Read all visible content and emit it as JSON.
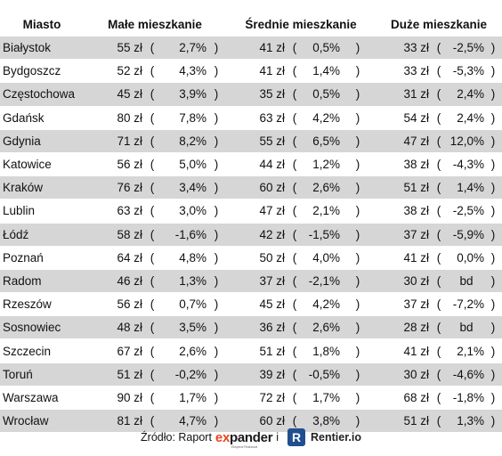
{
  "headers": [
    "Miasto",
    "Małe mieszkanie",
    "Średnie mieszkanie",
    "Duże mieszkanie"
  ],
  "rows": [
    {
      "city": "Białystok",
      "small": {
        "price": "55 zł",
        "change": "2,7%"
      },
      "medium": {
        "price": "41 zł",
        "change": "0,5%"
      },
      "large": {
        "price": "33 zł",
        "change": "-2,5%"
      }
    },
    {
      "city": "Bydgoszcz",
      "small": {
        "price": "52 zł",
        "change": "4,3%"
      },
      "medium": {
        "price": "41 zł",
        "change": "1,4%"
      },
      "large": {
        "price": "33 zł",
        "change": "-5,3%"
      }
    },
    {
      "city": "Częstochowa",
      "small": {
        "price": "45 zł",
        "change": "3,9%"
      },
      "medium": {
        "price": "35 zł",
        "change": "0,5%"
      },
      "large": {
        "price": "31 zł",
        "change": "2,4%"
      }
    },
    {
      "city": "Gdańsk",
      "small": {
        "price": "80 zł",
        "change": "7,8%"
      },
      "medium": {
        "price": "63 zł",
        "change": "4,2%"
      },
      "large": {
        "price": "54 zł",
        "change": "2,4%"
      }
    },
    {
      "city": "Gdynia",
      "small": {
        "price": "71 zł",
        "change": "8,2%"
      },
      "medium": {
        "price": "55 zł",
        "change": "6,5%"
      },
      "large": {
        "price": "47 zł",
        "change": "12,0%"
      }
    },
    {
      "city": "Katowice",
      "small": {
        "price": "56 zł",
        "change": "5,0%"
      },
      "medium": {
        "price": "44 zł",
        "change": "1,2%"
      },
      "large": {
        "price": "38 zł",
        "change": "-4,3%"
      }
    },
    {
      "city": "Kraków",
      "small": {
        "price": "76 zł",
        "change": "3,4%"
      },
      "medium": {
        "price": "60 zł",
        "change": "2,6%"
      },
      "large": {
        "price": "51 zł",
        "change": "1,4%"
      }
    },
    {
      "city": "Lublin",
      "small": {
        "price": "63 zł",
        "change": "3,0%"
      },
      "medium": {
        "price": "47 zł",
        "change": "2,1%"
      },
      "large": {
        "price": "38 zł",
        "change": "-2,5%"
      }
    },
    {
      "city": "Łódź",
      "small": {
        "price": "58 zł",
        "change": "-1,6%"
      },
      "medium": {
        "price": "42 zł",
        "change": "-1,5%"
      },
      "large": {
        "price": "37 zł",
        "change": "-5,9%"
      }
    },
    {
      "city": "Poznań",
      "small": {
        "price": "64 zł",
        "change": "4,8%"
      },
      "medium": {
        "price": "50 zł",
        "change": "4,0%"
      },
      "large": {
        "price": "41 zł",
        "change": "0,0%"
      }
    },
    {
      "city": "Radom",
      "small": {
        "price": "46 zł",
        "change": "1,3%"
      },
      "medium": {
        "price": "37 zł",
        "change": "-2,1%"
      },
      "large": {
        "price": "30 zł",
        "change": "bd"
      }
    },
    {
      "city": "Rzeszów",
      "small": {
        "price": "56 zł",
        "change": "0,7%"
      },
      "medium": {
        "price": "45 zł",
        "change": "4,2%"
      },
      "large": {
        "price": "37 zł",
        "change": "-7,2%"
      }
    },
    {
      "city": "Sosnowiec",
      "small": {
        "price": "48 zł",
        "change": "3,5%"
      },
      "medium": {
        "price": "36 zł",
        "change": "2,6%"
      },
      "large": {
        "price": "28 zł",
        "change": "bd"
      }
    },
    {
      "city": "Szczecin",
      "small": {
        "price": "67 zł",
        "change": "2,6%"
      },
      "medium": {
        "price": "51 zł",
        "change": "1,8%"
      },
      "large": {
        "price": "41 zł",
        "change": "2,1%"
      }
    },
    {
      "city": "Toruń",
      "small": {
        "price": "51 zł",
        "change": "-0,2%"
      },
      "medium": {
        "price": "39 zł",
        "change": "-0,5%"
      },
      "large": {
        "price": "30 zł",
        "change": "-4,6%"
      }
    },
    {
      "city": "Warszawa",
      "small": {
        "price": "90 zł",
        "change": "1,7%"
      },
      "medium": {
        "price": "72 zł",
        "change": "1,7%"
      },
      "large": {
        "price": "68 zł",
        "change": "-1,8%"
      }
    },
    {
      "city": "Wrocław",
      "small": {
        "price": "81 zł",
        "change": "4,7%"
      },
      "medium": {
        "price": "60 zł",
        "change": "3,8%"
      },
      "large": {
        "price": "51 zł",
        "change": "1,3%"
      }
    }
  ],
  "footer": {
    "source_label": "Źródło: Raport",
    "expander_ex": "ex",
    "expander_pander": "pander",
    "expander_sub": "Eksperci Finansowi",
    "connector": "i",
    "rentier_logo_letter": "R",
    "rentier": "Rentier.io"
  },
  "colors": {
    "stripe": "#d6d6d6",
    "expander_accent": "#e8461f",
    "rentier_blue": "#1f4f8f"
  }
}
